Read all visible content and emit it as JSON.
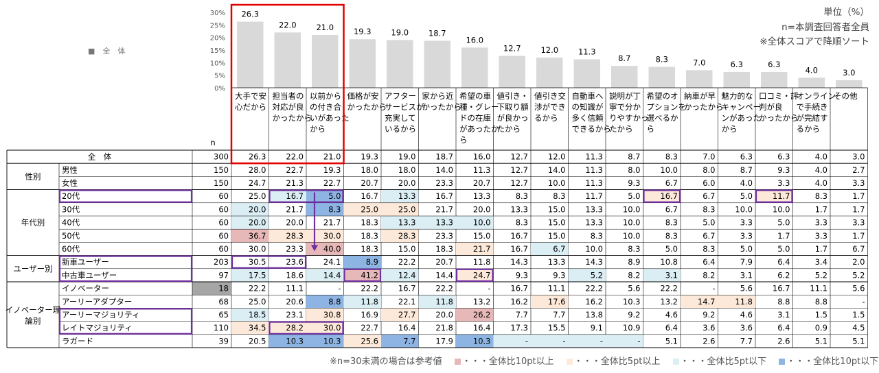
{
  "unit_note": "単位（%）",
  "n_note": "n=本調査回答者全員",
  "sort_note": "※全体スコアで降順ソート",
  "overall_mini_label": "■　全　体",
  "chart_data": {
    "type": "bar",
    "series_name": "全　体",
    "ylim": [
      0,
      30
    ],
    "y_ticks": [
      "0%",
      "5%",
      "10%",
      "15%",
      "20%",
      "25%",
      "30%"
    ],
    "categories": [
      [
        "大手で安",
        "心だから"
      ],
      [
        "担当者の",
        "対応が良",
        "かったから"
      ],
      [
        "以前から",
        "の付き合",
        "いがあった",
        "から"
      ],
      [
        "価格が安",
        "かったから"
      ],
      [
        "アフター",
        "サービスが",
        "充実して",
        "いるから"
      ],
      [
        "家から近",
        "かったから"
      ],
      [
        "希望の車",
        "種・グレー",
        "ドの在庫",
        "があったか",
        "ら"
      ],
      [
        "値引き・",
        "下取り額",
        "が良かっ",
        "たから"
      ],
      [
        "値引き交",
        "渉ができ",
        "るから"
      ],
      [
        "自動車へ",
        "の知識が",
        "多く信頼",
        "できるから"
      ],
      [
        "説明が丁",
        "寧で分か",
        "りやすかっ",
        "たから"
      ],
      [
        "希望のオ",
        "プションを",
        "選べるか",
        "ら"
      ],
      [
        "納車が早",
        "かったから"
      ],
      [
        "魅力的な",
        "キャンペー",
        "ンがあった",
        "から"
      ],
      [
        "口コミ・評",
        "判が良",
        "かったから"
      ],
      [
        "オンライン",
        "で手続き",
        "が完結す",
        "るから"
      ],
      [
        "その他"
      ]
    ],
    "values": [
      26.3,
      22.0,
      21.0,
      19.3,
      19.0,
      18.7,
      16.0,
      12.7,
      12.0,
      11.3,
      8.7,
      8.3,
      7.0,
      6.3,
      6.3,
      4.0,
      3.0
    ],
    "value_labels": [
      "26.3",
      "22.0",
      "21.0",
      "19.3",
      "19.0",
      "18.7",
      "16.0",
      "12.7",
      "12.0",
      "11.3",
      "8.7",
      "8.3",
      "7.0",
      "6.3",
      "6.3",
      "4.0",
      "3.0"
    ]
  },
  "table": {
    "n_header": "n",
    "rows": [
      {
        "group": "",
        "label": "全　体",
        "n": "300",
        "vals": [
          "26.3",
          "22.0",
          "21.0",
          "19.3",
          "19.0",
          "18.7",
          "16.0",
          "12.7",
          "12.0",
          "11.3",
          "8.7",
          "8.3",
          "7.0",
          "6.3",
          "6.3",
          "4.0",
          "3.0"
        ],
        "cls": []
      },
      {
        "group": "性別",
        "label": "男性",
        "n": "150",
        "vals": [
          "28.0",
          "22.7",
          "19.3",
          "18.0",
          "18.0",
          "14.0",
          "11.3",
          "12.7",
          "14.0",
          "11.3",
          "8.0",
          "10.0",
          "8.0",
          "8.7",
          "9.3",
          "4.0",
          "2.7"
        ],
        "cls": []
      },
      {
        "group": "",
        "label": "女性",
        "n": "150",
        "vals": [
          "24.7",
          "21.3",
          "22.7",
          "20.7",
          "20.0",
          "23.3",
          "20.7",
          "12.7",
          "10.0",
          "11.3",
          "9.3",
          "6.7",
          "6.0",
          "4.0",
          "3.3",
          "4.0",
          "3.3"
        ],
        "cls": []
      },
      {
        "group": "年代別",
        "label": "20代",
        "n": "60",
        "vals": [
          "25.0",
          "16.7",
          "5.0",
          "16.7",
          "13.3",
          "16.7",
          "13.3",
          "8.3",
          "8.3",
          "11.7",
          "5.0",
          "16.7",
          "6.7",
          "5.0",
          "11.7",
          "8.3",
          "1.7"
        ],
        "cls": [
          "",
          "LB",
          "DB",
          "",
          "LB",
          "",
          "",
          "",
          "",
          "",
          "",
          "LO",
          "",
          "",
          "LO",
          "",
          ""
        ]
      },
      {
        "group": "",
        "label": "30代",
        "n": "60",
        "vals": [
          "20.0",
          "21.7",
          "8.3",
          "25.0",
          "25.0",
          "21.7",
          "20.0",
          "13.3",
          "15.0",
          "13.3",
          "10.0",
          "6.7",
          "8.3",
          "10.0",
          "10.0",
          "1.7",
          "1.7"
        ],
        "cls": [
          "LB",
          "",
          "DB",
          "LO",
          "LO",
          "",
          "",
          "",
          "",
          "",
          "",
          "",
          "",
          "",
          "",
          "",
          ""
        ]
      },
      {
        "group": "",
        "label": "40代",
        "n": "60",
        "vals": [
          "20.0",
          "20.0",
          "21.7",
          "18.3",
          "13.3",
          "13.3",
          "10.0",
          "8.3",
          "15.0",
          "13.3",
          "10.0",
          "8.3",
          "5.0",
          "3.3",
          "5.0",
          "3.3",
          "3.3"
        ],
        "cls": [
          "LB",
          "",
          "",
          "",
          "LB",
          "LB",
          "LB",
          "",
          "",
          "",
          "",
          "",
          "",
          "",
          "",
          "",
          ""
        ]
      },
      {
        "group": "",
        "label": "50代",
        "n": "60",
        "vals": [
          "36.7",
          "28.3",
          "30.0",
          "18.3",
          "28.3",
          "23.3",
          "15.0",
          "16.7",
          "15.0",
          "8.3",
          "10.0",
          "8.3",
          "6.7",
          "3.3",
          "1.7",
          "3.3",
          "1.7"
        ],
        "cls": [
          "DR",
          "LO",
          "LO",
          "",
          "LO",
          "",
          "",
          "",
          "",
          "",
          "",
          "",
          "",
          "",
          "",
          "",
          ""
        ]
      },
      {
        "group": "",
        "label": "60代",
        "n": "60",
        "vals": [
          "30.0",
          "23.3",
          "40.0",
          "18.3",
          "15.0",
          "18.3",
          "21.7",
          "16.7",
          "6.7",
          "10.0",
          "8.3",
          "5.0",
          "8.3",
          "5.0",
          "5.0",
          "1.7",
          "6.7"
        ],
        "cls": [
          "",
          "",
          "DR",
          "",
          "",
          "",
          "LO",
          "",
          "LB",
          "",
          "",
          "",
          "",
          "",
          "",
          "",
          ""
        ]
      },
      {
        "group": "ユーザー別",
        "label": "新車ユーザー",
        "n": "203",
        "vals": [
          "30.5",
          "23.6",
          "24.1",
          "8.9",
          "22.2",
          "20.7",
          "11.8",
          "14.3",
          "13.3",
          "14.3",
          "8.9",
          "10.8",
          "6.4",
          "7.9",
          "6.4",
          "3.4",
          "2.0"
        ],
        "cls": [
          "",
          "",
          "",
          "DB",
          "",
          "",
          "",
          "",
          "",
          "",
          "",
          "",
          "",
          "",
          "",
          "",
          ""
        ]
      },
      {
        "group": "",
        "label": "中古車ユーザー",
        "n": "97",
        "vals": [
          "17.5",
          "18.6",
          "14.4",
          "41.2",
          "12.4",
          "14.4",
          "24.7",
          "9.3",
          "9.3",
          "5.2",
          "8.2",
          "3.1",
          "8.2",
          "3.1",
          "6.2",
          "5.2",
          "5.2"
        ],
        "cls": [
          "LB",
          "",
          "LB",
          "DR",
          "LB",
          "",
          "LO",
          "",
          "",
          "LB",
          "",
          "LB",
          "",
          "",
          "",
          "",
          ""
        ]
      },
      {
        "group": "イノベーター理論別",
        "label": "イノベーター",
        "n": "18",
        "vals": [
          "22.2",
          "11.1",
          "-",
          "22.2",
          "16.7",
          "22.2",
          "-",
          "16.7",
          "11.1",
          "22.2",
          "5.6",
          "22.2",
          "-",
          "5.6",
          "16.7",
          "11.1",
          "5.6"
        ],
        "cls": [],
        "ref": true
      },
      {
        "group": "",
        "label": "アーリーアダプター",
        "n": "68",
        "vals": [
          "25.0",
          "20.6",
          "8.8",
          "11.8",
          "22.1",
          "11.8",
          "13.2",
          "16.2",
          "17.6",
          "16.2",
          "10.3",
          "13.2",
          "14.7",
          "11.8",
          "8.8",
          "8.8",
          "-"
        ],
        "cls": [
          "",
          "",
          "DB",
          "LB",
          "",
          "LB",
          "",
          "",
          "LO",
          "",
          "",
          "",
          "LO",
          "LO",
          "",
          "",
          ""
        ]
      },
      {
        "group": "",
        "label": "アーリーマジョリティ",
        "n": "65",
        "vals": [
          "18.5",
          "23.1",
          "30.8",
          "16.9",
          "27.7",
          "20.0",
          "26.2",
          "7.7",
          "7.7",
          "13.8",
          "9.2",
          "4.6",
          "9.2",
          "4.6",
          "3.1",
          "1.5",
          "1.5"
        ],
        "cls": [
          "LB",
          "",
          "LO",
          "",
          "LO",
          "",
          "DR",
          "",
          "",
          "",
          "",
          "",
          "",
          "",
          "",
          "",
          ""
        ]
      },
      {
        "group": "",
        "label": "レイトマジョリティ",
        "n": "110",
        "vals": [
          "34.5",
          "28.2",
          "30.0",
          "22.7",
          "16.4",
          "21.8",
          "16.4",
          "17.3",
          "15.5",
          "9.1",
          "10.9",
          "6.4",
          "3.6",
          "3.6",
          "6.4",
          "0.9",
          "4.5"
        ],
        "cls": [
          "LO",
          "LO",
          "LO",
          "",
          "",
          "",
          "",
          "",
          "",
          "",
          "",
          "",
          "",
          "",
          "",
          "",
          ""
        ]
      },
      {
        "group": "",
        "label": "ラガード",
        "n": "39",
        "vals": [
          "20.5",
          "10.3",
          "10.3",
          "25.6",
          "7.7",
          "17.9",
          "10.3",
          "-",
          "-",
          "-",
          "-",
          "5.1",
          "2.6",
          "7.7",
          "2.6",
          "5.1",
          "5.1"
        ],
        "cls": [
          "",
          "DB",
          "DB",
          "LO",
          "DB",
          "",
          "DB",
          "LB",
          "LB",
          "LB",
          "LB",
          "",
          "",
          "",
          "",
          "",
          ""
        ]
      }
    ]
  },
  "footer_note": "※n=30未満の場合は参考値",
  "legend": [
    {
      "color": "#e6b8b7",
      "label": "・・・全体比10pt以上"
    },
    {
      "color": "#fde9d9",
      "label": "・・・全体比5pt以上"
    },
    {
      "color": "#dbeef4",
      "label": "・・・全体比5pt以下"
    },
    {
      "color": "#8db4e2",
      "label": "・・・全体比10pt以下"
    }
  ],
  "colors": {
    "bar": "#d9d9d9",
    "highlight_red": "#e00000",
    "highlight_purple": "#7030a0",
    "DR": "#e6b8b7",
    "LO": "#fde9d9",
    "LB": "#dbeef4",
    "DB": "#8db4e2",
    "ref_n": "#a6a6a6"
  }
}
